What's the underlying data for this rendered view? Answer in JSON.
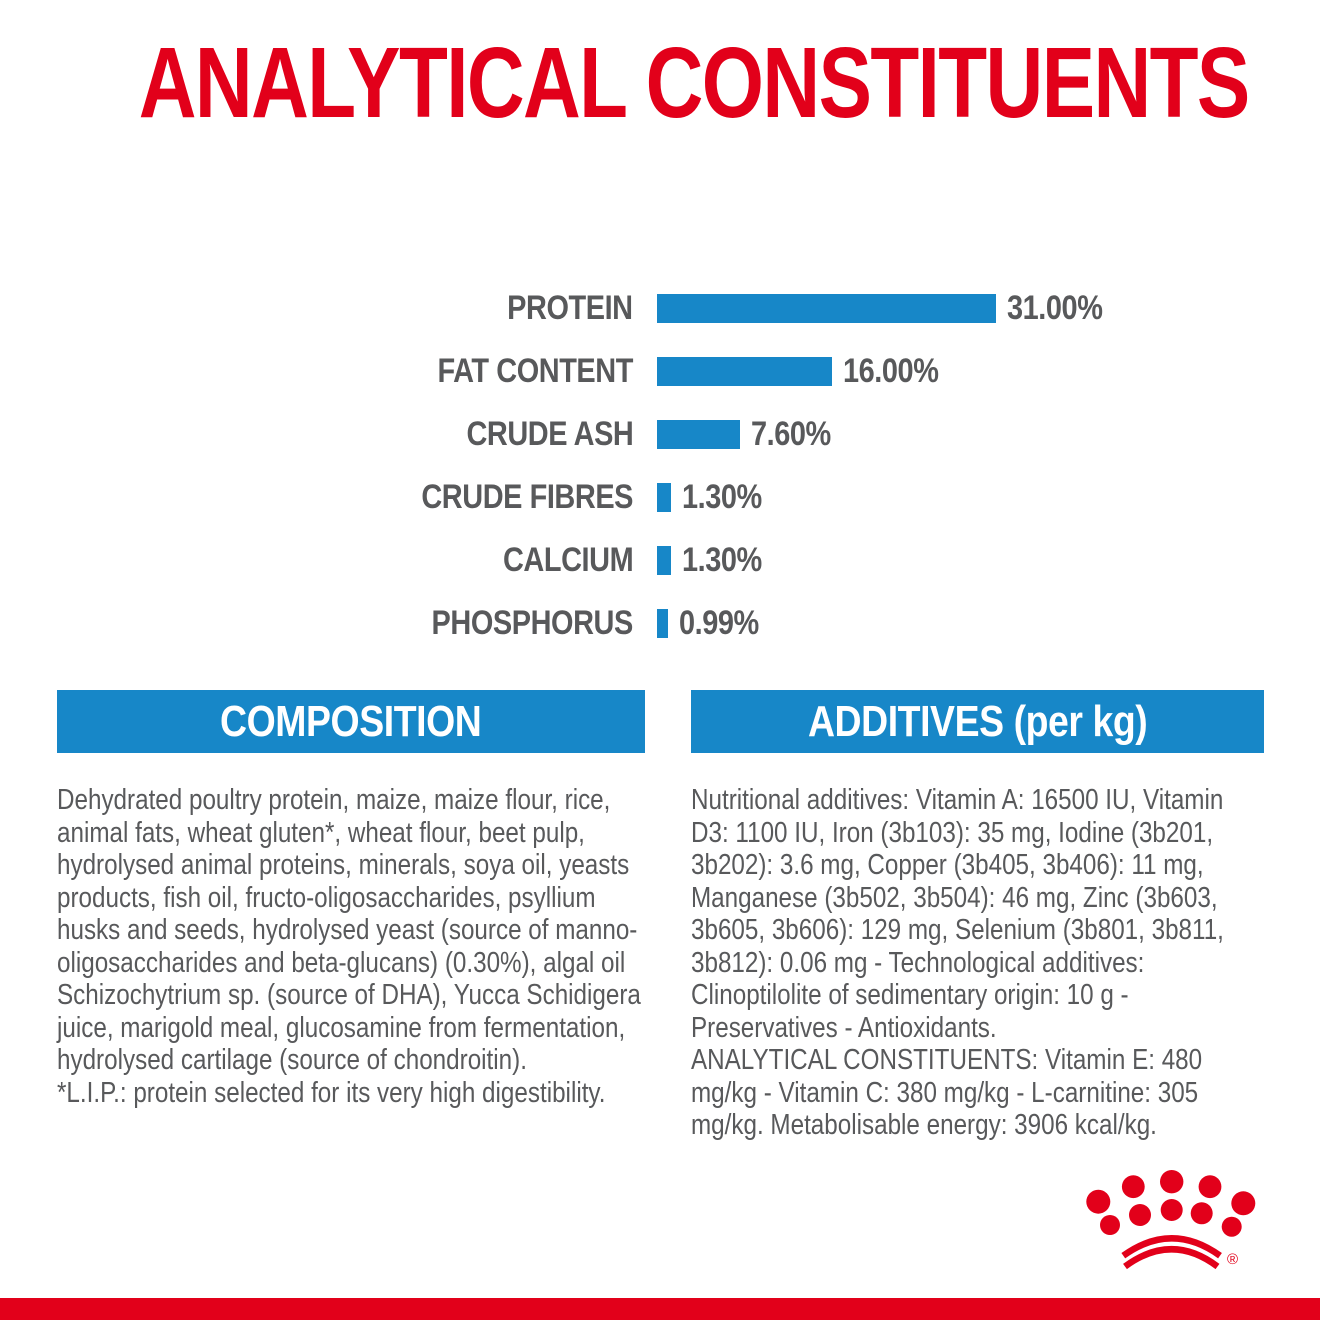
{
  "title": "ANALYTICAL CONSTITUENTS",
  "colors": {
    "brand_red": "#e2001a",
    "brand_blue": "#1787c8",
    "text_gray": "#58595b",
    "background": "#ffffff",
    "header_text": "#ffffff"
  },
  "chart_data": {
    "type": "bar",
    "orientation": "horizontal",
    "title": "ANALYTICAL CONSTITUENTS",
    "categories": [
      "PROTEIN",
      "FAT CONTENT",
      "CRUDE ASH",
      "CRUDE FIBRES",
      "CALCIUM",
      "PHOSPHORUS"
    ],
    "values": [
      31.0,
      16.0,
      7.6,
      1.3,
      1.3,
      0.99
    ],
    "value_labels": [
      "31.00%",
      "16.00%",
      "7.60%",
      "1.30%",
      "1.30%",
      "0.99%"
    ],
    "unit": "%",
    "xlim": [
      0,
      31
    ],
    "grid": false,
    "legend": false,
    "bar_color": "#1787c8",
    "label_color": "#58595b"
  },
  "sections": {
    "composition": {
      "header": "COMPOSITION",
      "paragraphs": [
        "Dehydrated poultry protein, maize, maize flour, rice, animal fats, wheat gluten*, wheat flour, beet pulp, hydrolysed animal proteins, minerals, soya oil, yeasts products, fish oil, fructo-oligosaccharides, psyllium husks and seeds, hydrolysed yeast (source of manno-oligosaccharides and beta-glucans) (0.30%), algal oil Schizochytrium sp. (source of DHA), Yucca Schidigera juice, marigold meal, glucosamine from fermentation, hydrolysed cartilage (source of chondroitin).",
        "*L.I.P.: protein selected for its very high digestibility."
      ]
    },
    "additives": {
      "header": "ADDITIVES (per kg)",
      "paragraphs": [
        "Nutritional additives: Vitamin A: 16500 IU, Vitamin D3: 1100 IU, Iron (3b103): 35 mg, Iodine (3b201, 3b202): 3.6 mg, Copper (3b405, 3b406): 11 mg, Manganese (3b502, 3b504): 46 mg, Zinc (3b603, 3b605, 3b606): 129 mg, Selenium (3b801, 3b811, 3b812): 0.06 mg - Technological additives: Clinoptilolite of sedimentary origin: 10 g - Preservatives - Antioxidants.",
        "ANALYTICAL CONSTITUENTS: Vitamin E: 480 mg/kg - Vitamin C: 380 mg/kg - L-carnitine: 305 mg/kg. Metabolisable energy: 3906 kcal/kg."
      ]
    }
  },
  "footer": {
    "logo": "royal-canin-crown-logo",
    "registered_mark": "®"
  }
}
